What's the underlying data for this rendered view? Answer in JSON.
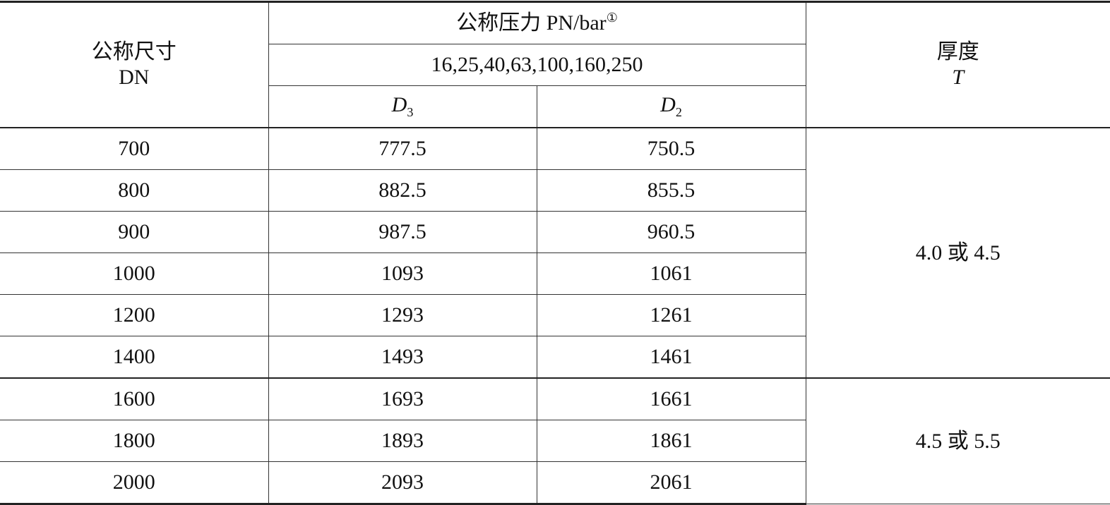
{
  "table": {
    "header": {
      "size": {
        "title": "公称尺寸",
        "symbol": "DN"
      },
      "pressure": {
        "title": "公称压力 PN/bar",
        "note": "①",
        "values": "16,25,40,63,100,160,250",
        "columns": [
          {
            "symbol": "D",
            "subscript": "3"
          },
          {
            "symbol": "D",
            "subscript": "2"
          }
        ]
      },
      "thickness": {
        "title": "厚度",
        "symbol": "T"
      }
    },
    "groups": [
      {
        "thickness": "4.0 或 4.5",
        "rows": [
          [
            "700",
            "777.5",
            "750.5"
          ],
          [
            "800",
            "882.5",
            "855.5"
          ],
          [
            "900",
            "987.5",
            "960.5"
          ],
          [
            "1000",
            "1093",
            "1061"
          ],
          [
            "1200",
            "1293",
            "1261"
          ],
          [
            "1400",
            "1493",
            "1461"
          ]
        ]
      },
      {
        "thickness": "4.5 或 5.5",
        "rows": [
          [
            "1600",
            "1693",
            "1661"
          ],
          [
            "1800",
            "1893",
            "1861"
          ],
          [
            "2000",
            "2093",
            "2061"
          ]
        ]
      }
    ]
  }
}
